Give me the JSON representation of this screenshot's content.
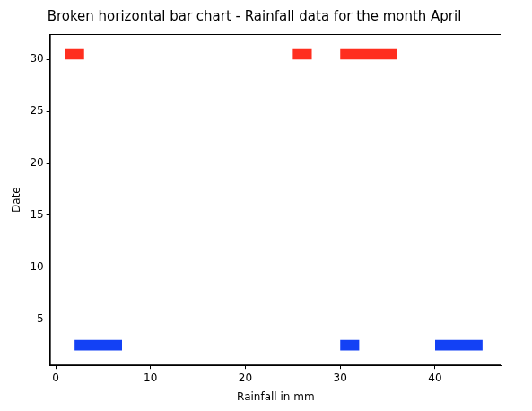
{
  "chart_data": {
    "type": "broken_bar",
    "title": "Broken horizontal bar chart - Rainfall data for the month April",
    "x_label": "Rainfall in mm",
    "y_label": "Date",
    "orientation": "horizontal",
    "grid": false,
    "series": [
      {
        "color": "#1341f5",
        "y_range": [
          2,
          3
        ],
        "values": [
          [
            2,
            7
          ],
          [
            30,
            32
          ],
          [
            40,
            45
          ]
        ]
      },
      {
        "color": "#ff2e1f",
        "y_range": [
          30,
          31
        ],
        "values": [
          [
            1,
            3
          ],
          [
            25,
            27
          ],
          [
            30,
            36
          ]
        ]
      }
    ],
    "xlim": [
      -0.6,
      47
    ],
    "xticks": [
      0,
      10,
      20,
      30,
      40
    ],
    "ylim": [
      0.55,
      32.45
    ],
    "yticks": [
      5,
      10,
      15,
      20,
      25,
      30
    ]
  }
}
